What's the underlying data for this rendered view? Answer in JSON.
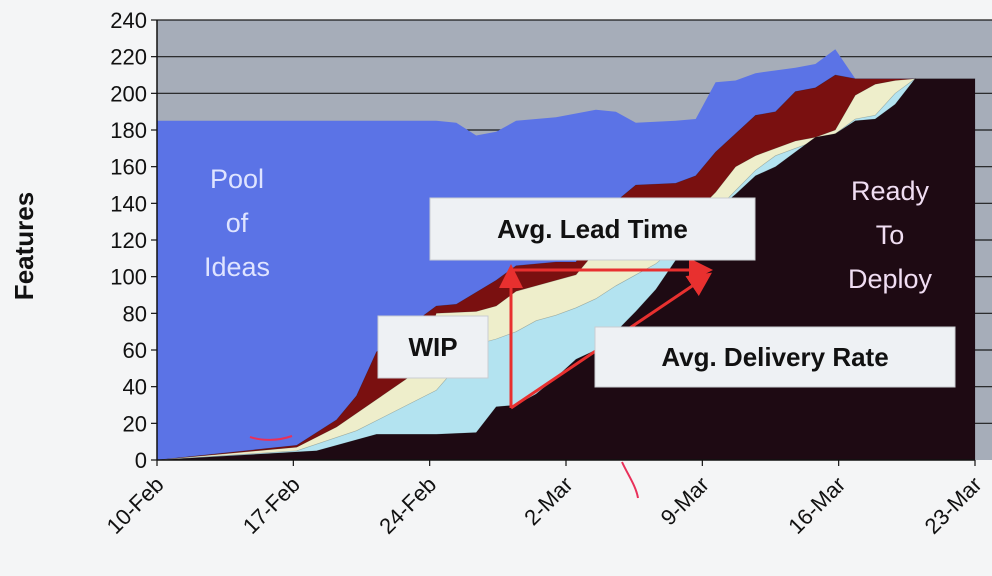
{
  "chart_data": {
    "type": "area",
    "title": "",
    "xlabel": "",
    "ylabel": "Features",
    "ylim": [
      0,
      240
    ],
    "yticks": [
      0,
      20,
      40,
      60,
      80,
      100,
      120,
      140,
      160,
      180,
      200,
      220,
      240
    ],
    "xlim": [
      "2025-02-10",
      "2025-03-23"
    ],
    "xticks": [
      "10-Feb",
      "17-Feb",
      "24-Feb",
      "2-Mar",
      "9-Mar",
      "16-Mar",
      "23-Mar"
    ],
    "grid": "horizontal",
    "stack_order": [
      "Ready To Deploy",
      "light-blue-band",
      "cream-band",
      "dark-red-band",
      "Pool of Ideas"
    ],
    "series": [
      {
        "name": "Pool of Ideas",
        "color": "#5b73e6",
        "points": [
          [
            "2025-02-10",
            185
          ],
          [
            "2025-02-12",
            185
          ],
          [
            "2025-02-24",
            185
          ],
          [
            "2025-02-25",
            184
          ],
          [
            "2025-02-26",
            177
          ],
          [
            "2025-02-27",
            179
          ],
          [
            "2025-02-28",
            185
          ],
          [
            "2025-03-02",
            187
          ],
          [
            "2025-03-03",
            189
          ],
          [
            "2025-03-04",
            191
          ],
          [
            "2025-03-05",
            190
          ],
          [
            "2025-03-06",
            184
          ],
          [
            "2025-03-08",
            185
          ],
          [
            "2025-03-09",
            186
          ],
          [
            "2025-03-10",
            206
          ],
          [
            "2025-03-11",
            207
          ],
          [
            "2025-03-12",
            211
          ],
          [
            "2025-03-14",
            214
          ],
          [
            "2025-03-15",
            216
          ],
          [
            "2025-03-16",
            224
          ],
          [
            "2025-03-17",
            208
          ],
          [
            "2025-03-20",
            208
          ]
        ]
      },
      {
        "color": "#7a1010",
        "points": [
          [
            "2025-02-10",
            0
          ],
          [
            "2025-02-17",
            8
          ],
          [
            "2025-02-19",
            22
          ],
          [
            "2025-02-20",
            35
          ],
          [
            "2025-02-21",
            59
          ],
          [
            "2025-02-22",
            66
          ],
          [
            "2025-02-23",
            76
          ],
          [
            "2025-02-24",
            84
          ],
          [
            "2025-02-25",
            85
          ],
          [
            "2025-02-27",
            98
          ],
          [
            "2025-02-28",
            106
          ],
          [
            "2025-03-02",
            108
          ],
          [
            "2025-03-03",
            108
          ],
          [
            "2025-03-04",
            129
          ],
          [
            "2025-03-05",
            141
          ],
          [
            "2025-03-06",
            150
          ],
          [
            "2025-03-08",
            151
          ],
          [
            "2025-03-09",
            155
          ],
          [
            "2025-03-10",
            168
          ],
          [
            "2025-03-12",
            188
          ],
          [
            "2025-03-13",
            190
          ],
          [
            "2025-03-14",
            201
          ],
          [
            "2025-03-15",
            203
          ],
          [
            "2025-03-16",
            210
          ],
          [
            "2025-03-17",
            208
          ],
          [
            "2025-03-20",
            208
          ]
        ]
      },
      {
        "color": "#eeeecb",
        "points": [
          [
            "2025-02-10",
            0
          ],
          [
            "2025-02-17",
            7
          ],
          [
            "2025-02-19",
            18
          ],
          [
            "2025-02-21",
            33
          ],
          [
            "2025-02-23",
            48
          ],
          [
            "2025-02-24",
            80
          ],
          [
            "2025-02-26",
            81
          ],
          [
            "2025-02-27",
            84
          ],
          [
            "2025-02-28",
            92
          ],
          [
            "2025-03-02",
            98
          ],
          [
            "2025-03-03",
            101
          ],
          [
            "2025-03-04",
            114
          ],
          [
            "2025-03-05",
            124
          ],
          [
            "2025-03-06",
            130
          ],
          [
            "2025-03-08",
            132
          ],
          [
            "2025-03-09",
            135
          ],
          [
            "2025-03-10",
            146
          ],
          [
            "2025-03-11",
            160
          ],
          [
            "2025-03-12",
            166
          ],
          [
            "2025-03-14",
            174
          ],
          [
            "2025-03-15",
            176
          ],
          [
            "2025-03-16",
            180
          ],
          [
            "2025-03-17",
            199
          ],
          [
            "2025-03-18",
            205
          ],
          [
            "2025-03-19",
            207
          ],
          [
            "2025-03-20",
            208
          ]
        ]
      },
      {
        "color": "#b3e3f0",
        "points": [
          [
            "2025-02-10",
            0
          ],
          [
            "2025-02-17",
            5
          ],
          [
            "2025-02-20",
            16
          ],
          [
            "2025-02-22",
            27
          ],
          [
            "2025-02-24",
            38
          ],
          [
            "2025-02-26",
            63
          ],
          [
            "2025-02-27",
            66
          ],
          [
            "2025-02-28",
            70
          ],
          [
            "2025-03-01",
            76
          ],
          [
            "2025-03-02",
            79
          ],
          [
            "2025-03-03",
            83
          ],
          [
            "2025-03-04",
            88
          ],
          [
            "2025-03-05",
            95
          ],
          [
            "2025-03-06",
            101
          ],
          [
            "2025-03-07",
            107
          ],
          [
            "2025-03-08",
            116
          ],
          [
            "2025-03-09",
            127
          ],
          [
            "2025-03-10",
            136
          ],
          [
            "2025-03-11",
            147
          ],
          [
            "2025-03-12",
            158
          ],
          [
            "2025-03-13",
            166
          ],
          [
            "2025-03-14",
            170
          ],
          [
            "2025-03-15",
            174
          ],
          [
            "2025-03-16",
            178
          ],
          [
            "2025-03-17",
            186
          ],
          [
            "2025-03-18",
            188
          ],
          [
            "2025-03-19",
            200
          ],
          [
            "2025-03-20",
            208
          ]
        ]
      },
      {
        "name": "Ready To Deploy",
        "color": "#1e0a13",
        "points": [
          [
            "2025-02-10",
            0
          ],
          [
            "2025-02-18",
            5
          ],
          [
            "2025-02-19",
            8
          ],
          [
            "2025-02-20",
            11
          ],
          [
            "2025-02-21",
            14
          ],
          [
            "2025-02-24",
            14
          ],
          [
            "2025-02-26",
            15
          ],
          [
            "2025-02-27",
            29
          ],
          [
            "2025-02-28",
            30
          ],
          [
            "2025-03-01",
            36
          ],
          [
            "2025-03-02",
            45
          ],
          [
            "2025-03-03",
            55
          ],
          [
            "2025-03-04",
            60
          ],
          [
            "2025-03-05",
            70
          ],
          [
            "2025-03-06",
            81
          ],
          [
            "2025-03-07",
            93
          ],
          [
            "2025-03-08",
            109
          ],
          [
            "2025-03-09",
            123
          ],
          [
            "2025-03-10",
            136
          ],
          [
            "2025-03-11",
            145
          ],
          [
            "2025-03-12",
            155
          ],
          [
            "2025-03-13",
            160
          ],
          [
            "2025-03-14",
            168
          ],
          [
            "2025-03-15",
            176
          ],
          [
            "2025-03-16",
            178
          ],
          [
            "2025-03-17",
            185
          ],
          [
            "2025-03-18",
            186
          ],
          [
            "2025-03-19",
            194
          ],
          [
            "2025-03-20",
            208
          ],
          [
            "2025-03-23",
            208
          ]
        ]
      }
    ],
    "annotations": [
      {
        "id": "pool",
        "lines": [
          "Pool",
          "of",
          "Ideas"
        ],
        "color": "#dfe4ff"
      },
      {
        "id": "ready",
        "lines": [
          "Ready",
          "To",
          "Deploy"
        ],
        "color": "#f0ddf2"
      },
      {
        "id": "lead",
        "text": "Avg. Lead Time"
      },
      {
        "id": "wip",
        "text": "WIP"
      },
      {
        "id": "rate",
        "text": "Avg. Delivery Rate"
      }
    ],
    "arrow_color": "#e8302f",
    "ink_color": "#e8305a"
  }
}
